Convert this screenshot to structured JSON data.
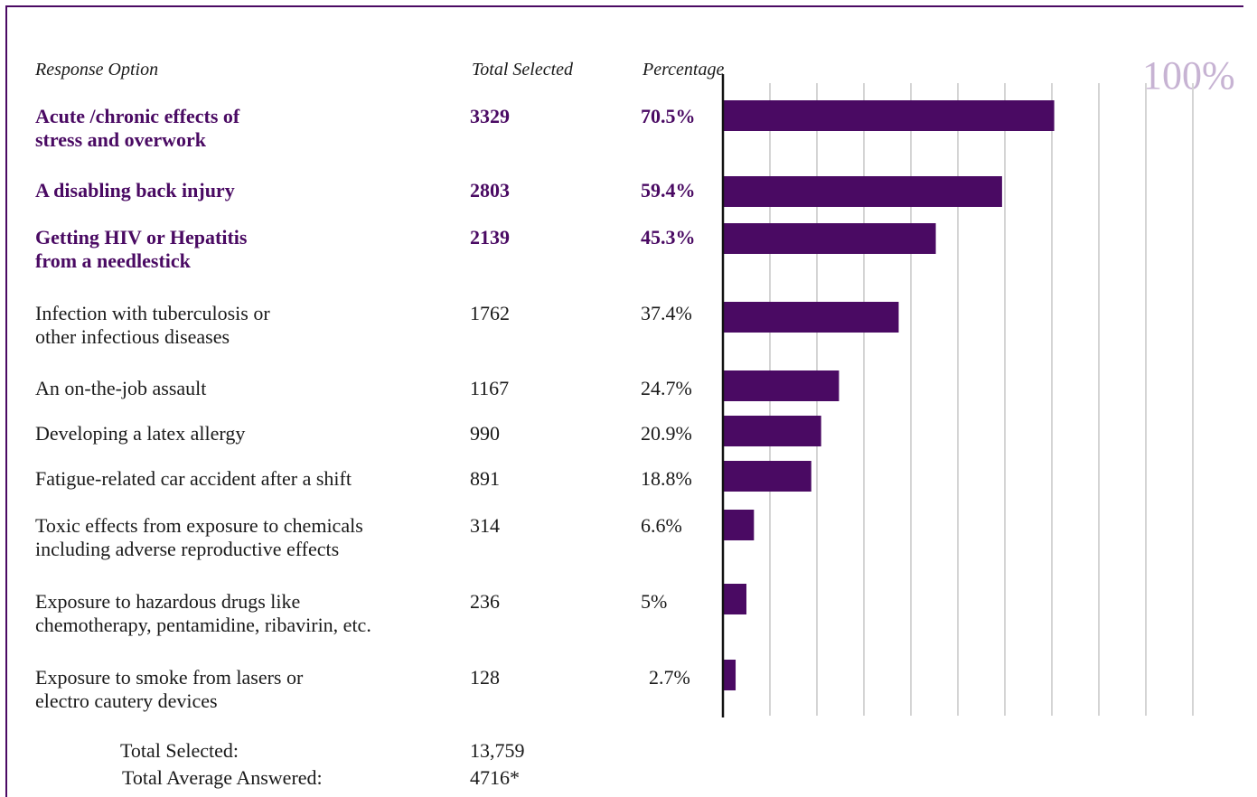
{
  "headers": {
    "response_option": "Response Option",
    "total_selected": "Total Selected",
    "percentage": "Percentage"
  },
  "scale_max_label": "100%",
  "rows": [
    {
      "lines": [
        "Acute /chronic effects of",
        "stress and overwork"
      ],
      "count": "3329",
      "pct_label": "70.5%",
      "bold": true
    },
    {
      "lines": [
        "A disabling back injury"
      ],
      "count": "2803",
      "pct_label": "59.4%",
      "bold": true
    },
    {
      "lines": [
        "Getting HIV or Hepatitis",
        "from a needlestick"
      ],
      "count": "2139",
      "pct_label": "45.3%",
      "bold": true
    },
    {
      "lines": [
        "Infection with tuberculosis or",
        "other infectious diseases"
      ],
      "count": "1762",
      "pct_label": "37.4%",
      "bold": false
    },
    {
      "lines": [
        "An on-the-job assault"
      ],
      "count": "1167",
      "pct_label": "24.7%",
      "bold": false
    },
    {
      "lines": [
        "Developing a latex allergy"
      ],
      "count": "990",
      "pct_label": "20.9%",
      "bold": false
    },
    {
      "lines": [
        "Fatigue-related car accident after a shift"
      ],
      "count": "891",
      "pct_label": "18.8%",
      "bold": false
    },
    {
      "lines": [
        "Toxic effects from exposure to chemicals",
        "including  adverse reproductive effects"
      ],
      "count": "314",
      "pct_label": "6.6%",
      "bold": false
    },
    {
      "lines": [
        "Exposure to hazardous drugs like",
        "chemotherapy, pentamidine, ribavirin, etc."
      ],
      "count": "236",
      "pct_label": "5%",
      "bold": false
    },
    {
      "lines": [
        "Exposure to smoke from lasers or",
        "electro cautery devices"
      ],
      "count": "128",
      "pct_label": "2.7%",
      "bold": false
    }
  ],
  "totals": {
    "selected_label": "Total Selected:",
    "selected_value": "13,759",
    "answered_label": "Total Average Answered:",
    "answered_value": "4716*"
  },
  "chart_data": {
    "type": "bar",
    "orientation": "horizontal",
    "categories": [
      "Acute /chronic effects of stress and overwork",
      "A disabling back injury",
      "Getting HIV or Hepatitis from a needlestick",
      "Infection with tuberculosis or other infectious diseases",
      "An on-the-job assault",
      "Developing a latex allergy",
      "Fatigue-related car accident after a shift",
      "Toxic effects from exposure to chemicals including  adverse reproductive effects",
      "Exposure to hazardous drugs like chemotherapy, pentamidine, ribavirin, etc.",
      "Exposure to smoke from lasers or electro cautery devices"
    ],
    "values": [
      70.5,
      59.4,
      45.3,
      37.4,
      24.7,
      20.9,
      18.8,
      6.6,
      5,
      2.7
    ],
    "xlim": [
      0,
      100
    ],
    "grid": true,
    "bar_color": "#4a0a63",
    "grid_color": "#d4d4d4"
  },
  "colors": {
    "accent": "#4a0a63",
    "scale_label": "#c7b3d3"
  }
}
